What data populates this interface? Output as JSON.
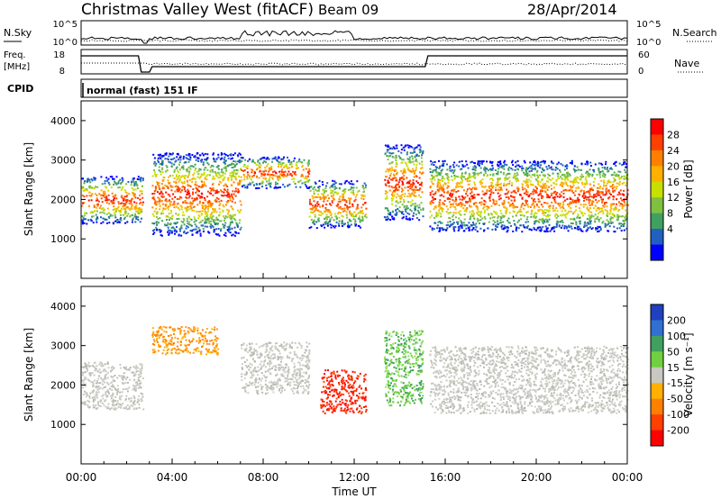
{
  "header": {
    "station": "Christmas Valley West (fitACF)",
    "beam": "Beam 09",
    "date": "28/Apr/2014"
  },
  "noise_panel": {
    "left_label": "N.Sky",
    "right_label": "N.Search",
    "left_ticks": [
      "10^5",
      "10^0"
    ],
    "right_ticks": [
      "10^5",
      "10^0"
    ]
  },
  "freq_panel": {
    "left_label_1": "Freq.",
    "left_label_2": "[MHz]",
    "right_label": "Nave",
    "left_ticks": [
      "18",
      "8"
    ],
    "right_ticks": [
      "60",
      "0"
    ]
  },
  "cpid": {
    "label": "CPID",
    "value": "normal (fast) 151 IF"
  },
  "chart_data": [
    {
      "type": "heatmap",
      "title": "Power",
      "ylabel": "Slant Range [km]",
      "xlabel": "Time UT",
      "x_ticks": [
        "00:00",
        "04:00",
        "08:00",
        "12:00",
        "16:00",
        "20:00",
        "00:00"
      ],
      "y_ticks": [
        "1000",
        "2000",
        "3000",
        "4000"
      ],
      "ylim": [
        0,
        4500
      ],
      "colorbar": {
        "label": "Power [dB]",
        "ticks": [
          "28",
          "24",
          "20",
          "16",
          "12",
          "8",
          "4"
        ],
        "colors": [
          "#ff0000",
          "#ff4000",
          "#ff8000",
          "#ffb000",
          "#c8e000",
          "#7fc040",
          "#40a060",
          "#2060c0",
          "#0000ff"
        ]
      },
      "scatter_bands": [
        {
          "x_hours": [
            0.0,
            2.7
          ],
          "range_km": [
            1400,
            2600
          ],
          "level": "high"
        },
        {
          "x_hours": [
            3.1,
            7.0
          ],
          "range_km": [
            1100,
            3200
          ],
          "level": "high"
        },
        {
          "x_hours": [
            7.0,
            10.0
          ],
          "range_km": [
            2300,
            3100
          ],
          "level": "mid"
        },
        {
          "x_hours": [
            10.0,
            12.5
          ],
          "range_km": [
            1300,
            2500
          ],
          "level": "low"
        },
        {
          "x_hours": [
            13.3,
            15.0
          ],
          "range_km": [
            1500,
            3400
          ],
          "level": "high"
        },
        {
          "x_hours": [
            15.3,
            24.0
          ],
          "range_km": [
            1200,
            3000
          ],
          "level": "high"
        }
      ]
    },
    {
      "type": "heatmap",
      "title": "Velocity",
      "ylabel": "Slant Range [km]",
      "xlabel": "Time UT",
      "x_ticks": [
        "00:00",
        "04:00",
        "08:00",
        "12:00",
        "16:00",
        "20:00",
        "00:00"
      ],
      "y_ticks": [
        "1000",
        "2000",
        "3000",
        "4000"
      ],
      "ylim": [
        0,
        4500
      ],
      "colorbar": {
        "label": "Velocity [m s⁻¹]",
        "ticks": [
          "200",
          "100",
          "50",
          "15",
          "-15",
          "-50",
          "-100",
          "-200"
        ],
        "colors": [
          "#2040c0",
          "#3070d0",
          "#40a060",
          "#70d040",
          "#c8c8c0",
          "#ffb000",
          "#ff8000",
          "#ff4000",
          "#ff0000"
        ]
      },
      "scatter_bands": [
        {
          "x_hours": [
            0.0,
            2.7
          ],
          "range_km": [
            1400,
            2600
          ],
          "level": "grey"
        },
        {
          "x_hours": [
            3.1,
            6.0
          ],
          "range_km": [
            2800,
            3500
          ],
          "level": "orange"
        },
        {
          "x_hours": [
            7.0,
            10.0
          ],
          "range_km": [
            1800,
            3100
          ],
          "level": "grey"
        },
        {
          "x_hours": [
            10.5,
            12.5
          ],
          "range_km": [
            1300,
            2400
          ],
          "level": "red"
        },
        {
          "x_hours": [
            13.3,
            15.0
          ],
          "range_km": [
            1500,
            3400
          ],
          "level": "green"
        },
        {
          "x_hours": [
            15.3,
            24.0
          ],
          "range_km": [
            1300,
            3000
          ],
          "level": "grey"
        }
      ]
    }
  ]
}
